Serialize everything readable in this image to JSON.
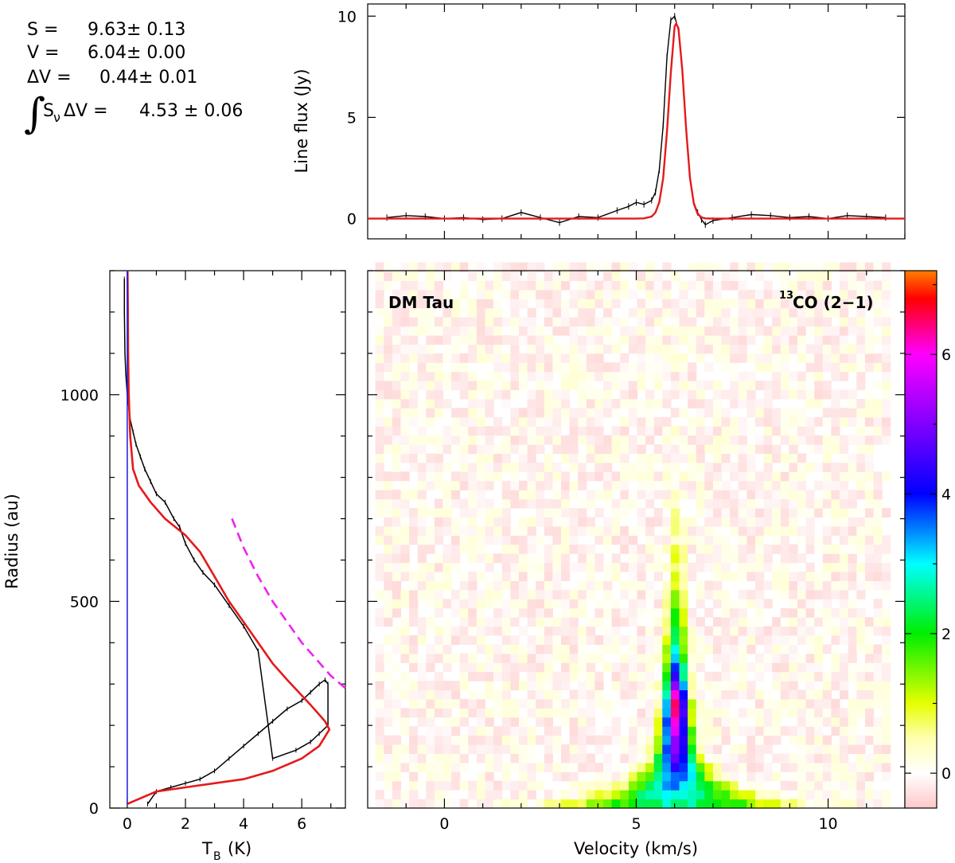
{
  "fit_results": {
    "s_label": "S =",
    "s_value": "9.63±  0.13",
    "v_label": "V =",
    "v_value": "6.04±  0.00",
    "dv_label": "ΔV =",
    "dv_value": "0.44±  0.01",
    "integral_symbol": "∫",
    "int_label": "S",
    "int_sub": "ν",
    "int_label2": "ΔV =",
    "int_value": "4.53  ±   0.06"
  },
  "colors": {
    "data": "#000000",
    "model": "#e41a1c",
    "zero_line": "#1a1adf",
    "dashed_model": "#ee22ee"
  },
  "chart_data": [
    {
      "type": "line",
      "panel": "spectrum",
      "ylabel": "Line flux (Jy)",
      "xlim": [
        -2.0,
        12.0
      ],
      "ylim": [
        -1.0,
        10.6
      ],
      "yticks": [
        0,
        5,
        10
      ],
      "grid": false,
      "series": [
        {
          "x": [
            -1.5,
            -1.0,
            -0.5,
            0.0,
            0.5,
            1.0,
            1.5,
            2.0,
            2.5,
            3.0,
            3.5,
            4.0,
            4.5,
            4.8,
            5.0,
            5.2,
            5.4,
            5.5,
            5.6,
            5.7,
            5.8,
            5.9,
            6.0,
            6.1,
            6.2,
            6.3,
            6.4,
            6.5,
            6.6,
            6.7,
            6.8,
            7.0,
            7.5,
            8.0,
            8.5,
            9.0,
            9.5,
            10.0,
            10.5,
            11.0,
            11.5
          ],
          "values": [
            0.05,
            0.15,
            0.1,
            0.0,
            0.05,
            -0.05,
            0.0,
            0.3,
            0.05,
            -0.2,
            0.1,
            0.05,
            0.4,
            0.6,
            0.8,
            0.7,
            0.9,
            1.3,
            2.4,
            4.6,
            8.0,
            9.8,
            10.0,
            9.3,
            7.4,
            4.5,
            2.0,
            0.8,
            0.3,
            -0.05,
            -0.3,
            -0.1,
            0.05,
            0.2,
            0.15,
            0.05,
            0.1,
            0.0,
            0.15,
            0.1,
            0.05
          ]
        },
        {
          "x": [
            -2.0,
            4.5,
            5.0,
            5.2,
            5.4,
            5.5,
            5.6,
            5.7,
            5.8,
            5.9,
            6.0,
            6.04,
            6.1,
            6.2,
            6.3,
            6.4,
            6.5,
            6.6,
            6.7,
            6.8,
            7.0,
            7.5,
            12.0
          ],
          "values": [
            0,
            0,
            0.0,
            0.01,
            0.1,
            0.3,
            0.8,
            2.0,
            4.3,
            7.2,
            9.5,
            9.63,
            9.4,
            7.3,
            4.4,
            2.0,
            0.75,
            0.23,
            0.06,
            0.01,
            0,
            0,
            0
          ]
        }
      ]
    },
    {
      "type": "line",
      "panel": "radial-profile",
      "xlabel": "T",
      "xlabel_sub": "B",
      "xlabel_unit": "(K)",
      "ylabel": "Radius (au)",
      "xlim": [
        -0.6,
        7.5
      ],
      "ylim": [
        0,
        1300
      ],
      "xticks": [
        0,
        2,
        4,
        6
      ],
      "yticks": [
        0,
        500,
        1000
      ],
      "series": [
        {
          "x": [
            0.7,
            1.0,
            1.5,
            2.0,
            2.5,
            3.0,
            3.5,
            4.0,
            4.5,
            5.0,
            5.5,
            6.0,
            6.3,
            6.6,
            6.8,
            6.9,
            6.9,
            6.6,
            6.3,
            5.8,
            5.0,
            4.5,
            4.0,
            3.5,
            3.0,
            2.6,
            2.3,
            2.0,
            1.8,
            1.6,
            1.3,
            1.0,
            0.8,
            0.6,
            0.45,
            0.3,
            0.2,
            0.1,
            0.05,
            0.0,
            -0.05,
            -0.08,
            -0.1,
            -0.1
          ],
          "values": [
            10,
            40,
            50,
            60,
            70,
            90,
            120,
            150,
            180,
            210,
            240,
            260,
            280,
            300,
            310,
            300,
            200,
            180,
            160,
            140,
            120,
            380,
            440,
            490,
            540,
            570,
            600,
            640,
            680,
            700,
            740,
            760,
            790,
            820,
            850,
            880,
            910,
            940,
            970,
            1000,
            1050,
            1100,
            1200,
            1280
          ]
        },
        {
          "x": [
            0.0,
            1.0,
            2.0,
            3.0,
            4.0,
            5.0,
            6.0,
            6.6,
            6.95,
            6.8,
            6.3,
            5.5,
            5.0,
            4.5,
            4.0,
            3.5,
            3.0,
            2.5,
            2.0,
            1.3,
            0.8,
            0.4,
            0.2,
            0.1,
            0.05,
            0.03,
            0.02,
            0.01
          ],
          "values": [
            10,
            40,
            50,
            60,
            70,
            90,
            120,
            150,
            190,
            210,
            250,
            310,
            350,
            400,
            450,
            500,
            560,
            620,
            660,
            700,
            740,
            780,
            820,
            900,
            1000,
            1100,
            1200,
            1300
          ]
        },
        {
          "x": [
            3.6,
            4.0,
            4.5,
            5.0,
            5.5,
            6.0,
            6.5,
            7.0,
            7.5
          ],
          "values": [
            700,
            630,
            560,
            500,
            450,
            400,
            360,
            320,
            290
          ]
        },
        {
          "x": [
            0.0,
            0.0
          ],
          "values": [
            10,
            1300
          ]
        }
      ]
    },
    {
      "type": "heatmap",
      "panel": "position-velocity",
      "title": "DM Tau",
      "annotation": "CO (2−1)",
      "annotation_sup": "13",
      "xlabel": "Velocity (km/s)",
      "xlim": [
        -2.0,
        12.0
      ],
      "ylim": [
        0,
        1300
      ],
      "xticks": [
        0,
        5,
        10
      ],
      "colorbar": {
        "range": [
          -0.5,
          7.2
        ],
        "ticks": [
          0,
          2,
          4,
          6
        ],
        "colors": [
          "#ffc8c8",
          "#ffffff",
          "#ffffb0",
          "#e6ff00",
          "#00ee00",
          "#00ffff",
          "#0000ff",
          "#8000ff",
          "#ff00ff",
          "#ff0000",
          "#ff7f00"
        ],
        "stops": [
          -0.5,
          0.0,
          0.5,
          1.0,
          2.0,
          3.0,
          4.0,
          5.0,
          6.0,
          6.8,
          7.2
        ]
      },
      "peak_velocity": 6.04,
      "peak_radius": 250,
      "peak_value": 7.0
    }
  ]
}
